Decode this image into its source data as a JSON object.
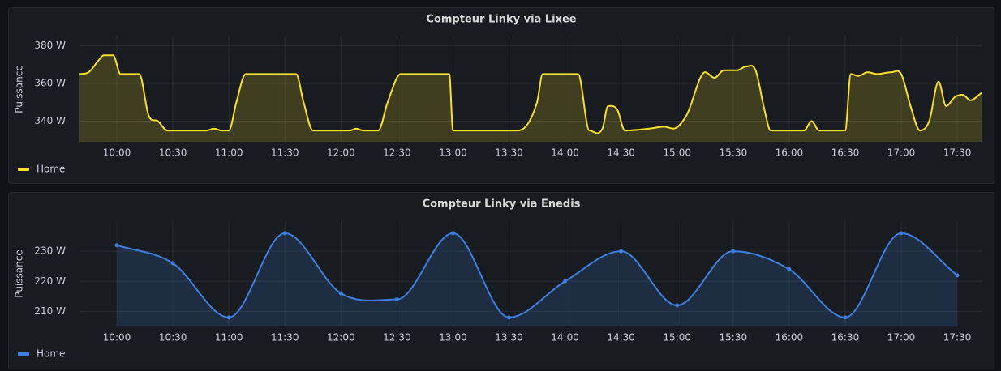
{
  "chart_data": [
    {
      "type": "line",
      "title": "Compteur Linky via Lixee",
      "y_label": "Puissance",
      "x": [
        "09:40",
        "09:45",
        "09:50",
        "09:53",
        "09:58",
        "10:02",
        "10:05",
        "10:12",
        "10:17",
        "10:22",
        "10:27",
        "10:40",
        "10:48",
        "10:52",
        "10:56",
        "11:00",
        "11:04",
        "11:09",
        "11:36",
        "11:40",
        "11:45",
        "12:05",
        "12:08",
        "12:12",
        "12:20",
        "12:25",
        "12:32",
        "12:58",
        "13:00",
        "13:25",
        "13:35",
        "13:45",
        "13:48",
        "14:07",
        "14:13",
        "14:20",
        "14:23",
        "14:28",
        "14:32",
        "14:45",
        "14:53",
        "14:58",
        "15:05",
        "15:15",
        "15:20",
        "15:25",
        "15:32",
        "15:37",
        "15:42",
        "15:47",
        "15:50",
        "16:08",
        "16:12",
        "16:16",
        "16:30",
        "16:33",
        "16:37",
        "16:42",
        "16:47",
        "16:55",
        "17:00",
        "17:05",
        "17:10",
        "17:15",
        "17:20",
        "17:24",
        "17:29",
        "17:33",
        "17:37",
        "17:43"
      ],
      "series": [
        {
          "name": "Home",
          "color": "#fade2a",
          "values": [
            365,
            366,
            372,
            375,
            375,
            365,
            365,
            365,
            343,
            340,
            335,
            335,
            335,
            336,
            335,
            335,
            350,
            365,
            365,
            350,
            335,
            335,
            336,
            335,
            335,
            350,
            365,
            365,
            335,
            335,
            335,
            350,
            365,
            365,
            335,
            336,
            348,
            346,
            335,
            336,
            337,
            336,
            343,
            366,
            363,
            367,
            367,
            369,
            367,
            345,
            335,
            335,
            340,
            335,
            335,
            365,
            364,
            366,
            365,
            366,
            365,
            348,
            335,
            340,
            361,
            348,
            353,
            354,
            351,
            355
          ]
        }
      ],
      "xlim": [
        "09:40",
        "17:43"
      ],
      "xticks": [
        "10:00",
        "10:30",
        "11:00",
        "11:30",
        "12:00",
        "12:30",
        "13:00",
        "13:30",
        "14:00",
        "14:30",
        "15:00",
        "15:30",
        "16:00",
        "16:30",
        "17:00",
        "17:30"
      ],
      "ylim": [
        329,
        385
      ],
      "yticks": [
        {
          "value": 340,
          "label": "340 W"
        },
        {
          "value": 360,
          "label": "360 W"
        },
        {
          "value": 380,
          "label": "380 W"
        }
      ],
      "grid": true,
      "show_points": false
    },
    {
      "type": "line",
      "title": "Compteur Linky via Enedis",
      "y_label": "Puissance",
      "x": [
        "10:00",
        "10:30",
        "11:00",
        "11:30",
        "12:00",
        "12:30",
        "13:00",
        "13:30",
        "14:00",
        "14:30",
        "15:00",
        "15:30",
        "16:00",
        "16:30",
        "17:00",
        "17:30"
      ],
      "series": [
        {
          "name": "Home",
          "color": "#3d7fe0",
          "values": [
            232,
            226,
            208,
            236,
            216,
            214,
            236,
            208,
            220,
            230,
            212,
            230,
            224,
            208,
            236,
            222
          ]
        }
      ],
      "xlim": [
        "09:40",
        "17:43"
      ],
      "xticks": [
        "10:00",
        "10:30",
        "11:00",
        "11:30",
        "12:00",
        "12:30",
        "13:00",
        "13:30",
        "14:00",
        "14:30",
        "15:00",
        "15:30",
        "16:00",
        "16:30",
        "17:00",
        "17:30"
      ],
      "ylim": [
        205,
        240
      ],
      "yticks": [
        {
          "value": 210,
          "label": "210 W"
        },
        {
          "value": 220,
          "label": "220 W"
        },
        {
          "value": 230,
          "label": "230 W"
        }
      ],
      "grid": true,
      "show_points": true
    }
  ]
}
